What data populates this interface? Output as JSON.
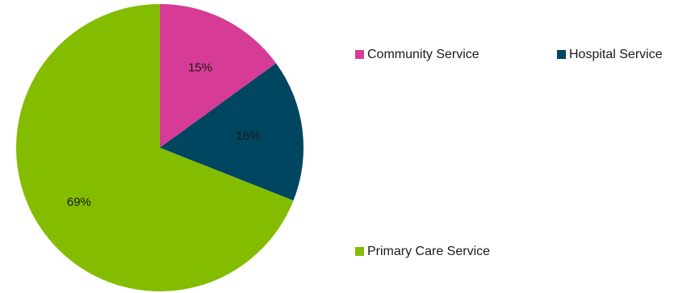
{
  "chart_data": {
    "type": "pie",
    "categories": [
      "Community Service",
      "Hospital Service",
      "Primary Care Service"
    ],
    "values": [
      15,
      16,
      69
    ],
    "value_labels": [
      "15%",
      "16%",
      "69%"
    ],
    "colors": [
      "#d63c96",
      "#004660",
      "#84bd00"
    ],
    "start_angle_deg": 0,
    "direction": "clockwise",
    "legend_position": "right"
  }
}
